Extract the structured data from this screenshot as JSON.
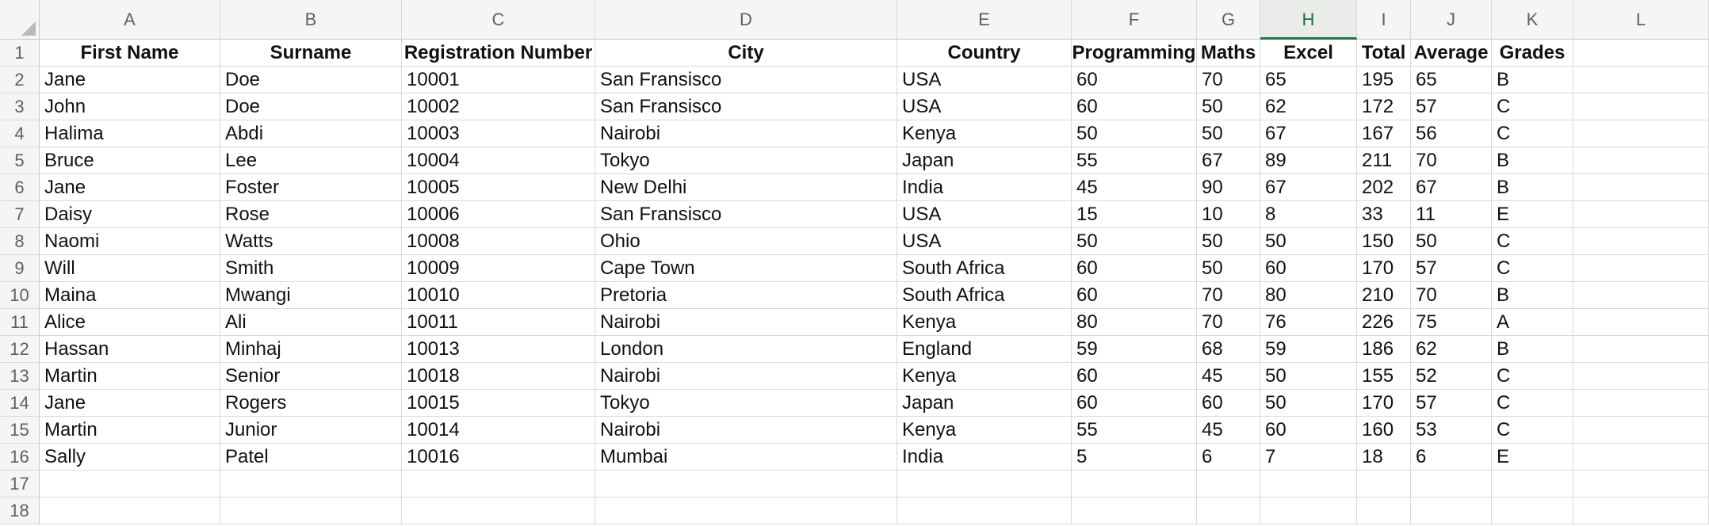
{
  "sheet": {
    "columns": [
      "A",
      "B",
      "C",
      "D",
      "E",
      "F",
      "G",
      "H",
      "I",
      "J",
      "K",
      "L"
    ],
    "selected_column": "H",
    "row_numbers": [
      "1",
      "2",
      "3",
      "4",
      "5",
      "6",
      "7",
      "8",
      "9",
      "10",
      "11",
      "12",
      "13",
      "14",
      "15",
      "16",
      "17",
      "18"
    ],
    "header": [
      "First Name",
      "Surname",
      "Registration Number",
      "City",
      "Country",
      "Programming",
      "Maths",
      "Excel",
      "Total",
      "Average",
      "Grades",
      ""
    ],
    "rows": [
      [
        "Jane",
        "Doe",
        "10001",
        "San Fransisco",
        "USA",
        "60",
        "70",
        "65",
        "195",
        "65",
        "B",
        ""
      ],
      [
        "John",
        "Doe",
        "10002",
        "San Fransisco",
        "USA",
        "60",
        "50",
        "62",
        "172",
        "57",
        "C",
        ""
      ],
      [
        "Halima",
        "Abdi",
        "10003",
        "Nairobi",
        "Kenya",
        "50",
        "50",
        "67",
        "167",
        "56",
        "C",
        ""
      ],
      [
        "Bruce",
        "Lee",
        "10004",
        "Tokyo",
        "Japan",
        "55",
        "67",
        "89",
        "211",
        "70",
        "B",
        ""
      ],
      [
        "Jane",
        "Foster",
        "10005",
        "New Delhi",
        "India",
        "45",
        "90",
        "67",
        "202",
        "67",
        "B",
        ""
      ],
      [
        "Daisy",
        "Rose",
        "10006",
        "San Fransisco",
        "USA",
        "15",
        "10",
        "8",
        "33",
        "11",
        "E",
        ""
      ],
      [
        "Naomi",
        "Watts",
        "10008",
        "Ohio",
        "USA",
        "50",
        "50",
        "50",
        "150",
        "50",
        "C",
        ""
      ],
      [
        "Will",
        "Smith",
        "10009",
        "Cape Town",
        "South Africa",
        "60",
        "50",
        "60",
        "170",
        "57",
        "C",
        ""
      ],
      [
        "Maina",
        "Mwangi",
        "10010",
        "Pretoria",
        "South Africa",
        "60",
        "70",
        "80",
        "210",
        "70",
        "B",
        ""
      ],
      [
        "Alice",
        "Ali",
        "10011",
        "Nairobi",
        "Kenya",
        "80",
        "70",
        "76",
        "226",
        "75",
        "A",
        ""
      ],
      [
        "Hassan",
        "Minhaj",
        "10013",
        "London",
        "England",
        "59",
        "68",
        "59",
        "186",
        "62",
        "B",
        ""
      ],
      [
        "Martin",
        "Senior",
        "10018",
        "Nairobi",
        "Kenya",
        "60",
        "45",
        "50",
        "155",
        "52",
        "C",
        ""
      ],
      [
        "Jane",
        "Rogers",
        "10015",
        "Tokyo",
        "Japan",
        "60",
        "60",
        "50",
        "170",
        "57",
        "C",
        ""
      ],
      [
        "Martin",
        "Junior",
        "10014",
        "Nairobi",
        "Kenya",
        "55",
        "45",
        "60",
        "160",
        "53",
        "C",
        ""
      ],
      [
        "Sally",
        "Patel",
        "10016",
        "Mumbai",
        "India",
        "5",
        "6",
        "7",
        "18",
        "6",
        "E",
        ""
      ],
      [
        "",
        "",
        "",
        "",
        "",
        "",
        "",
        "",
        "",
        "",
        "",
        ""
      ],
      [
        "",
        "",
        "",
        "",
        "",
        "",
        "",
        "",
        "",
        "",
        "",
        ""
      ]
    ]
  }
}
